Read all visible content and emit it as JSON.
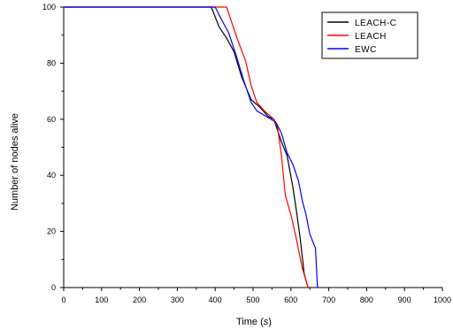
{
  "chart_data": {
    "type": "line",
    "title": "",
    "xlabel": "Time",
    "xlabel_unit": "s",
    "ylabel": "Number of nodes alive",
    "xlim": [
      0,
      1000
    ],
    "ylim": [
      0,
      100
    ],
    "x_ticks": [
      0,
      100,
      200,
      300,
      400,
      500,
      600,
      700,
      800,
      900,
      1000
    ],
    "y_ticks": [
      0,
      20,
      40,
      60,
      80,
      100
    ],
    "grid": false,
    "legend_position": "top-right",
    "series": [
      {
        "name": "LEACH-C",
        "color": "#000000",
        "points": [
          [
            0,
            100
          ],
          [
            390,
            100
          ],
          [
            410,
            93
          ],
          [
            430,
            89
          ],
          [
            450,
            84
          ],
          [
            470,
            75
          ],
          [
            495,
            67
          ],
          [
            520,
            64
          ],
          [
            540,
            61
          ],
          [
            555,
            60
          ],
          [
            575,
            52
          ],
          [
            590,
            47
          ],
          [
            605,
            36
          ],
          [
            615,
            27
          ],
          [
            625,
            17
          ],
          [
            635,
            5
          ],
          [
            645,
            0
          ],
          [
            650,
            0
          ]
        ]
      },
      {
        "name": "LEACH",
        "color": "#ff0000",
        "points": [
          [
            0,
            100
          ],
          [
            430,
            100
          ],
          [
            445,
            94
          ],
          [
            460,
            88
          ],
          [
            480,
            81
          ],
          [
            495,
            72
          ],
          [
            510,
            66
          ],
          [
            530,
            63
          ],
          [
            555,
            60
          ],
          [
            565,
            57
          ],
          [
            575,
            47
          ],
          [
            585,
            33
          ],
          [
            600,
            26
          ],
          [
            615,
            17
          ],
          [
            630,
            7
          ],
          [
            645,
            0
          ],
          [
            650,
            0
          ]
        ]
      },
      {
        "name": "EWC",
        "color": "#0000ff",
        "points": [
          [
            0,
            100
          ],
          [
            400,
            100
          ],
          [
            415,
            96
          ],
          [
            435,
            91
          ],
          [
            455,
            83
          ],
          [
            475,
            74
          ],
          [
            495,
            66
          ],
          [
            510,
            63
          ],
          [
            535,
            61
          ],
          [
            560,
            59
          ],
          [
            575,
            55
          ],
          [
            590,
            48
          ],
          [
            605,
            44
          ],
          [
            620,
            38
          ],
          [
            630,
            31
          ],
          [
            640,
            26
          ],
          [
            650,
            19
          ],
          [
            665,
            14
          ],
          [
            670,
            0
          ],
          [
            675,
            0
          ]
        ]
      }
    ]
  }
}
